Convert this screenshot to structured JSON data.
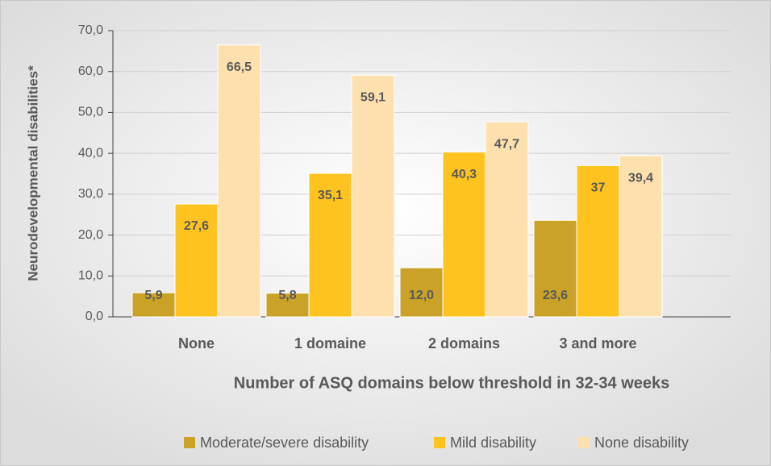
{
  "chart_data": {
    "type": "bar",
    "x_label": "Number of ASQ domains below threshold in 32-34 weeks",
    "y_label": "Neurodevelopmental disabilities*",
    "categories": [
      "None",
      "1 domaine",
      "2 domains",
      "3 and more"
    ],
    "series": [
      {
        "name": "Moderate/severe disability",
        "color": "#c9a227",
        "values": [
          5.9,
          5.8,
          12.0,
          23.6
        ],
        "value_labels": [
          "5,9",
          "5,8",
          "12,0",
          "23,6"
        ]
      },
      {
        "name": "Mild disability",
        "color": "#fec31e",
        "values": [
          27.6,
          35.1,
          40.3,
          37
        ],
        "value_labels": [
          "27,6",
          "35,1",
          "40,3",
          "37"
        ]
      },
      {
        "name": "None disability",
        "color": "#fde0ae",
        "values": [
          66.5,
          59.1,
          47.7,
          39.4
        ],
        "value_labels": [
          "66,5",
          "59,1",
          "47,7",
          "39,4"
        ]
      }
    ],
    "ylim": [
      0,
      70
    ],
    "yticks": [
      {
        "value": 0,
        "label": "0,0"
      },
      {
        "value": 10,
        "label": "10,0"
      },
      {
        "value": 20,
        "label": "20,0"
      },
      {
        "value": 30,
        "label": "30,0"
      },
      {
        "value": 40,
        "label": "40,0"
      },
      {
        "value": 50,
        "label": "50,0"
      },
      {
        "value": 60,
        "label": "60,0"
      },
      {
        "value": 70,
        "label": "70,0"
      }
    ],
    "grid": true,
    "legend": "bottom"
  }
}
